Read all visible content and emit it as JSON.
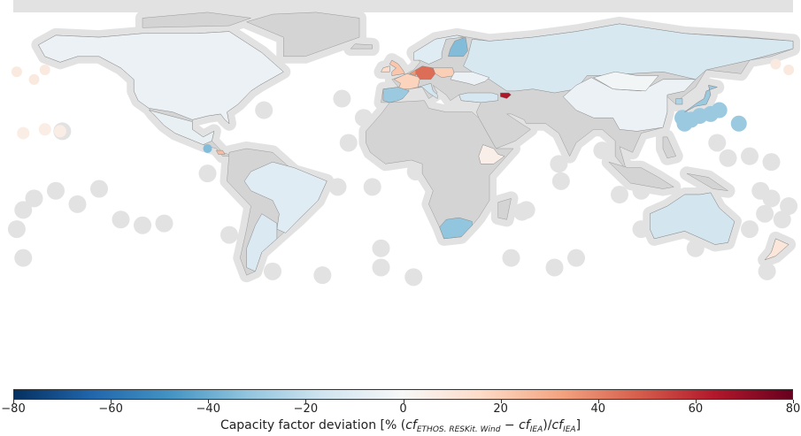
{
  "map": {
    "colors": {
      "land_no_data": "#d4d4d4",
      "offshore_buffer": "#e2e2e2",
      "ocean": "#ffffff",
      "border": "#9a9a9a"
    },
    "colormap": "RdBu_r",
    "regions": [
      {
        "id": "north-america",
        "deviation": -5
      },
      {
        "id": "mexico",
        "deviation": -6
      },
      {
        "id": "costa-rica",
        "deviation": 25
      },
      {
        "id": "brazil",
        "deviation": -10
      },
      {
        "id": "argentina",
        "deviation": -12
      },
      {
        "id": "uk",
        "deviation": 22
      },
      {
        "id": "ireland",
        "deviation": 15
      },
      {
        "id": "france",
        "deviation": 18
      },
      {
        "id": "germany",
        "deviation": 45
      },
      {
        "id": "benelux",
        "deviation": 35
      },
      {
        "id": "poland",
        "deviation": 20
      },
      {
        "id": "spain",
        "deviation": -30
      },
      {
        "id": "italy",
        "deviation": -15
      },
      {
        "id": "scandinavia",
        "deviation": -10
      },
      {
        "id": "finland",
        "deviation": -35
      },
      {
        "id": "russia-kazakhstan",
        "deviation": -13
      },
      {
        "id": "ukraine",
        "deviation": -5
      },
      {
        "id": "turkey",
        "deviation": -14
      },
      {
        "id": "azerbaijan",
        "deviation": 65
      },
      {
        "id": "china",
        "deviation": -5
      },
      {
        "id": "mongolia",
        "deviation": -2
      },
      {
        "id": "korea",
        "deviation": -25
      },
      {
        "id": "japan",
        "deviation": -30
      },
      {
        "id": "ethiopia",
        "deviation": 5
      },
      {
        "id": "south-africa",
        "deviation": -32
      },
      {
        "id": "australia",
        "deviation": -15
      },
      {
        "id": "new-zealand",
        "deviation": 10
      }
    ]
  },
  "colorbar": {
    "min": -80,
    "max": 80,
    "stops": [
      "#053061",
      "#2166ac",
      "#4393c3",
      "#92c5de",
      "#d1e5f0",
      "#f7f7f7",
      "#fddbc7",
      "#f4a582",
      "#d6604d",
      "#b2182b",
      "#67001f"
    ],
    "ticks": [
      "−80",
      "−60",
      "−40",
      "−20",
      "0",
      "20",
      "40",
      "60",
      "80"
    ],
    "label": {
      "prefix": "Capacity factor deviation [% (",
      "cf1": "cf",
      "sub1": "ETHOS. RESKit. Wind",
      "minus": " − ",
      "cf2": "cf",
      "sub2": "IEA",
      "slash": ")/",
      "cf3": "cf",
      "sub3": "IEA",
      "suffix": "]"
    }
  }
}
